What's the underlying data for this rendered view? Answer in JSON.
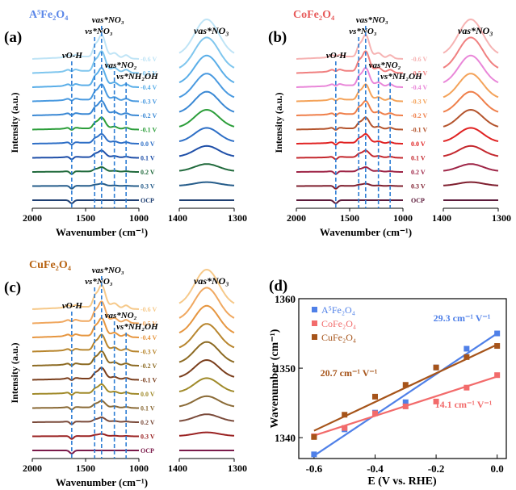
{
  "figure": {
    "panels": [
      {
        "label": "(a)",
        "material": "A5Fe2O4",
        "material_color": "#5b87e8",
        "ylabel": "Intensity (a.u.)",
        "xlabel": "Wavenumber (cm⁻¹)",
        "left_ticks": [
          "2000",
          "1500",
          "1000"
        ],
        "right_ticks": [
          "1400",
          "1300"
        ],
        "bands": [
          {
            "name": "vO-H",
            "label": "νO-H",
            "wavenumber": 1630
          },
          {
            "name": "vs*NO3",
            "label": "νs*NO₃",
            "wavenumber": 1415
          },
          {
            "name": "vas*NO3",
            "label": "νas*NO₃",
            "wavenumber": 1350
          },
          {
            "name": "vas*NO2",
            "label": "νas*NO₂",
            "wavenumber": 1230
          },
          {
            "name": "vs*NH2OH",
            "label": "νs*NH₂OH",
            "wavenumber": 1120
          }
        ],
        "right_band_label": "νas*NO₃",
        "potentials": [
          "-0.6 V",
          "-0.5 V",
          "-0.4 V",
          "-0.3 V",
          "-0.2 V",
          "-0.1 V",
          "0.0 V",
          "0.1 V",
          "0.2 V",
          "0.3 V",
          "OCP"
        ],
        "colors": [
          "#bfe4f6",
          "#7fc6ee",
          "#5aaee8",
          "#4a9ae0",
          "#3a88d4",
          "#2c9e3a",
          "#2e6fc6",
          "#1f4fa8",
          "#206a3c",
          "#255c8a",
          "#1f3f72"
        ]
      },
      {
        "label": "(b)",
        "material": "CoFe2O4",
        "material_color": "#e75a5a",
        "ylabel": "Intensity (a.u.)",
        "xlabel": "Wavenumber (cm⁻¹)",
        "left_ticks": [
          "2000",
          "1500",
          "1000"
        ],
        "right_ticks": [
          "1400",
          "1300"
        ],
        "bands": [
          {
            "name": "vO-H",
            "label": "νO-H",
            "wavenumber": 1630
          },
          {
            "name": "vs*NO3",
            "label": "νs*NO₃",
            "wavenumber": 1415
          },
          {
            "name": "vas*NO3",
            "label": "νas*NO₃",
            "wavenumber": 1350
          },
          {
            "name": "vas*NO2",
            "label": "νas*NO₂",
            "wavenumber": 1230
          },
          {
            "name": "vs*NH2OH",
            "label": "νs*NH₂OH",
            "wavenumber": 1120
          }
        ],
        "right_band_label": "νas*NO₃",
        "potentials": [
          "-0.6 V",
          "-0.5 V",
          "-0.4 V",
          "-0.3 V",
          "-0.2 V",
          "-0.1 V",
          "0.0 V",
          "0.1 V",
          "0.2 V",
          "0.3 V",
          "OCP"
        ],
        "colors": [
          "#f6b3b3",
          "#f08080",
          "#e987d9",
          "#f4a35a",
          "#ef7f4a",
          "#b4542d",
          "#e02222",
          "#c4282e",
          "#9e2446",
          "#7f1f2f",
          "#5c1a3a"
        ]
      },
      {
        "label": "(c)",
        "material": "CuFe2O4",
        "material_color": "#b86414",
        "ylabel": "Intensity (a.u.)",
        "xlabel": "Wavenumber (cm⁻¹)",
        "left_ticks": [
          "2000",
          "1500",
          "1000"
        ],
        "right_ticks": [
          "1400",
          "1300"
        ],
        "bands": [
          {
            "name": "vO-H",
            "label": "νO-H",
            "wavenumber": 1630
          },
          {
            "name": "vs*NO3",
            "label": "νs*NO₃",
            "wavenumber": 1415
          },
          {
            "name": "vas*NO3",
            "label": "νas*NO₃",
            "wavenumber": 1350
          },
          {
            "name": "vas*NO2",
            "label": "νas*NO₂",
            "wavenumber": 1230
          },
          {
            "name": "vs*NH2OH",
            "label": "νs*NH₂OH",
            "wavenumber": 1120
          }
        ],
        "right_band_label": "νas*NO₃",
        "potentials": [
          "-0.6 V",
          "-0.5 V",
          "-0.4 V",
          "-0.3 V",
          "-0.2 V",
          "-0.1 V",
          "0.0 V",
          "0.1 V",
          "0.2 V",
          "0.3 V",
          "OCP"
        ],
        "colors": [
          "#f6c98a",
          "#f0a860",
          "#e69640",
          "#b8862e",
          "#8c6a22",
          "#7a3e1c",
          "#a08a2a",
          "#8a6a36",
          "#7a4a3a",
          "#9a2222",
          "#7a1a4a"
        ]
      }
    ]
  },
  "chart_data": {
    "label": "(d)",
    "type": "scatter",
    "title": "",
    "xlabel": "E (V vs. RHE)",
    "ylabel": "Wavenumber (cm⁻¹)",
    "xlim": [
      -0.65,
      0.03
    ],
    "ylim": [
      1337,
      1360
    ],
    "x_ticks": [
      "-0.6",
      "-0.4",
      "-0.2",
      "0.0"
    ],
    "y_ticks": [
      "1340",
      "1350",
      "1360"
    ],
    "legend_position": "top-left",
    "series": [
      {
        "name": "A5Fe2O4",
        "color": "#4f80e8",
        "x": [
          -0.6,
          -0.5,
          -0.4,
          -0.3,
          -0.2,
          -0.1,
          0.0
        ],
        "y": [
          1337.6,
          1341.2,
          1343.6,
          1345.1,
          1350.1,
          1352.8,
          1355.0
        ],
        "fit": [
          -0.6,
          1337.4,
          0.0,
          1355.0
        ],
        "slope": "29.3 cm⁻¹ V⁻¹"
      },
      {
        "name": "CoFe2O4",
        "color": "#f26b6b",
        "x": [
          -0.6,
          -0.5,
          -0.4,
          -0.3,
          -0.2,
          -0.1,
          0.0
        ],
        "y": [
          1340.2,
          1341.4,
          1343.5,
          1344.5,
          1345.2,
          1347.2,
          1349.0
        ],
        "fit": [
          -0.6,
          1340.3,
          0.0,
          1348.8
        ],
        "slope": "14.1 cm⁻¹ V⁻¹"
      },
      {
        "name": "CuFe2O4",
        "color": "#a6541a",
        "x": [
          -0.6,
          -0.5,
          -0.4,
          -0.3,
          -0.2,
          -0.1,
          0.0
        ],
        "y": [
          1340.1,
          1343.3,
          1345.9,
          1347.6,
          1350.1,
          1351.6,
          1353.2
        ],
        "fit": [
          -0.6,
          1341.0,
          0.0,
          1353.4
        ],
        "slope": "20.7 cm⁻¹ V⁻¹"
      }
    ]
  }
}
